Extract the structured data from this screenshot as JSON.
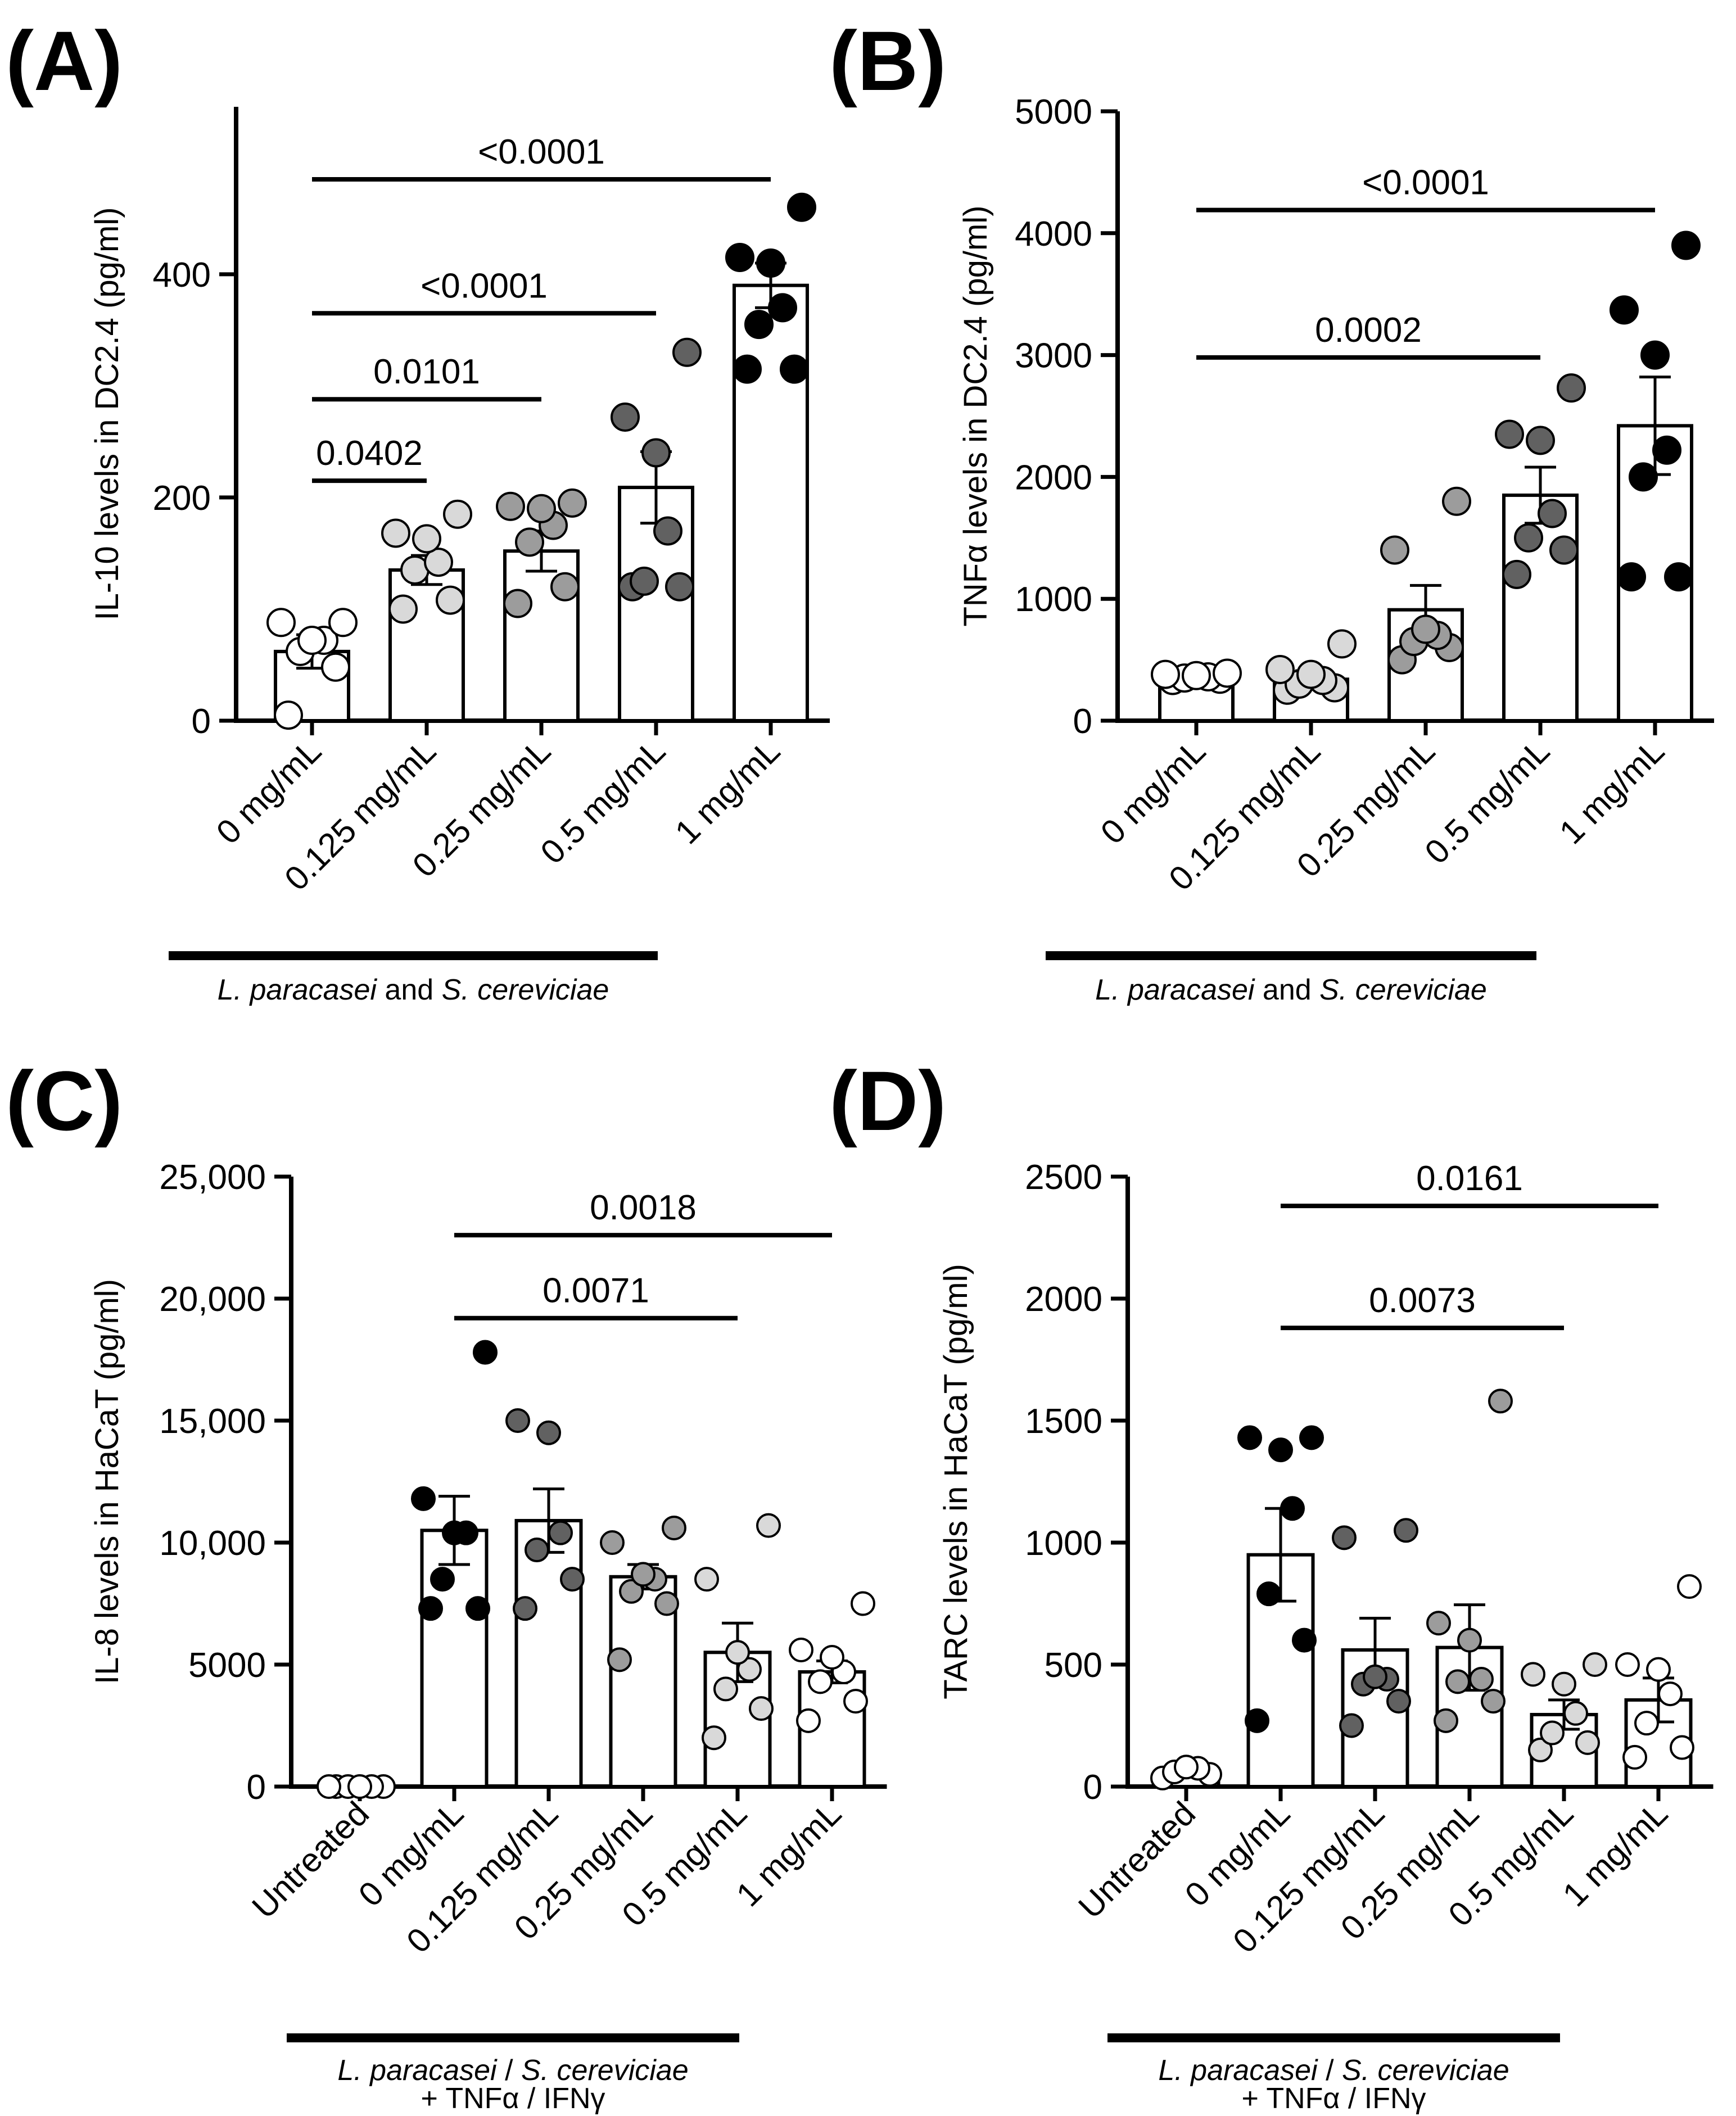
{
  "colors": {
    "white": "#ffffff",
    "light_gray": "#d9d9d9",
    "gray": "#9c9c9c",
    "dark_gray": "#616161",
    "black": "#000000"
  },
  "chart_data": [
    {
      "panel": "(A)",
      "type": "bar",
      "ylabel": "IL-10 levels in DC2.4 (pg/ml)",
      "categories": [
        "0 mg/mL",
        "0.125 mg/mL",
        "0.25 mg/mL",
        "0.5 mg/mL",
        "1 mg/mL"
      ],
      "ylim": [
        0,
        550
      ],
      "yticks": [
        0,
        200,
        400
      ],
      "ytick_labels": [
        "0",
        "200",
        "400"
      ],
      "means": [
        62,
        135,
        152,
        209,
        390
      ],
      "sem": [
        15,
        13,
        18,
        32,
        20
      ],
      "points": [
        [
          5,
          48,
          62,
          72,
          72,
          88,
          88
        ],
        [
          100,
          108,
          135,
          142,
          163,
          168,
          185
        ],
        [
          105,
          120,
          160,
          175,
          190,
          192,
          195
        ],
        [
          120,
          120,
          125,
          170,
          240,
          272,
          330
        ],
        [
          315,
          315,
          355,
          370,
          410,
          415,
          460
        ]
      ],
      "point_colors": [
        "white",
        "light_gray",
        "gray",
        "dark_gray",
        "black"
      ],
      "comparisons": [
        {
          "from": 0,
          "to": 1,
          "y": 215,
          "label": "0.0402"
        },
        {
          "from": 0,
          "to": 2,
          "y": 288,
          "label": "0.0101"
        },
        {
          "from": 0,
          "to": 3,
          "y": 365,
          "label": "<0.0001"
        },
        {
          "from": 0,
          "to": 4,
          "y": 485,
          "label": "<0.0001"
        }
      ],
      "group_bar_label_parts": [
        {
          "text": "L. paracasei",
          "italic": true
        },
        {
          "text": " and ",
          "italic": false
        },
        {
          "text": "S. cereviciae",
          "italic": true
        }
      ],
      "group_bar_line2": ""
    },
    {
      "panel": "(B)",
      "type": "bar",
      "ylabel": "TNFα levels in DC2.4 (pg/ml)",
      "categories": [
        "0 mg/mL",
        "0.125 mg/mL",
        "0.25 mg/mL",
        "0.5 mg/mL",
        "1 mg/mL"
      ],
      "ylim": [
        0,
        5000
      ],
      "yticks": [
        0,
        1000,
        2000,
        3000,
        4000,
        5000
      ],
      "ytick_labels": [
        "0",
        "1000",
        "2000",
        "3000",
        "4000",
        "5000"
      ],
      "means": [
        350,
        340,
        910,
        1850,
        2420
      ],
      "sem": [
        30,
        70,
        200,
        230,
        400
      ],
      "points": [
        [
          330,
          340,
          350,
          360,
          370,
          380,
          390
        ],
        [
          250,
          270,
          300,
          330,
          380,
          420,
          630
        ],
        [
          500,
          600,
          650,
          700,
          750,
          1400,
          1800
        ],
        [
          1200,
          1400,
          1500,
          1700,
          2300,
          2350,
          2730
        ],
        [
          1180,
          1180,
          2000,
          2220,
          3000,
          3370,
          3900
        ]
      ],
      "point_colors": [
        "white",
        "light_gray",
        "gray",
        "dark_gray",
        "black"
      ],
      "comparisons": [
        {
          "from": 0,
          "to": 3,
          "y": 2980,
          "label": "0.0002"
        },
        {
          "from": 0,
          "to": 4,
          "y": 4190,
          "label": "<0.0001"
        }
      ],
      "group_bar_label_parts": [
        {
          "text": "L. paracasei",
          "italic": true
        },
        {
          "text": " and ",
          "italic": false
        },
        {
          "text": "S. cereviciae",
          "italic": true
        }
      ],
      "group_bar_line2": ""
    },
    {
      "panel": "(C)",
      "type": "bar",
      "ylabel": "IL-8 levels in HaCaT (pg/ml)",
      "categories": [
        "Untreated",
        "0 mg/mL",
        "0.125 mg/mL",
        "0.25 mg/mL",
        "0.5 mg/mL",
        "1 mg/mL"
      ],
      "ylim": [
        0,
        25000
      ],
      "yticks": [
        0,
        5000,
        10000,
        15000,
        20000,
        25000
      ],
      "ytick_labels": [
        "0",
        "5000",
        "10,000",
        "15,000",
        "20,000",
        "25,000"
      ],
      "means": [
        0,
        10500,
        10900,
        8600,
        5500,
        4700
      ],
      "sem": [
        0,
        1400,
        1300,
        500,
        1200,
        450
      ],
      "points": [
        [
          0,
          0,
          0,
          0,
          0,
          0
        ],
        [
          7300,
          7300,
          8500,
          10400,
          10400,
          11800,
          17800
        ],
        [
          7300,
          8500,
          9700,
          10400,
          14500,
          15000
        ],
        [
          5200,
          7500,
          8000,
          8500,
          8700,
          10000,
          10600
        ],
        [
          2000,
          3200,
          4000,
          4800,
          5500,
          8500,
          10700
        ],
        [
          2700,
          3500,
          4300,
          4700,
          5300,
          5600,
          7500
        ]
      ],
      "point_colors": [
        "white",
        "black",
        "dark_gray",
        "gray",
        "light_gray",
        "white"
      ],
      "comparisons": [
        {
          "from": 1,
          "to": 4,
          "y": 19200,
          "label": "0.0071"
        },
        {
          "from": 1,
          "to": 5,
          "y": 22600,
          "label": "0.0018"
        }
      ],
      "group_bar_label_parts": [
        {
          "text": "L. paracasei",
          "italic": true
        },
        {
          "text": " / ",
          "italic": false
        },
        {
          "text": "S. cereviciae",
          "italic": true
        }
      ],
      "group_bar_line2": "+ TNFα / IFNγ"
    },
    {
      "panel": "(D)",
      "type": "bar",
      "ylabel": "TARC levels in HaCaT (pg/ml)",
      "categories": [
        "Untreated",
        "0 mg/mL",
        "0.125 mg/mL",
        "0.25 mg/mL",
        "0.5 mg/mL",
        "1 mg/mL"
      ],
      "ylim": [
        0,
        2500
      ],
      "yticks": [
        0,
        500,
        1000,
        1500,
        2000,
        2500
      ],
      "ytick_labels": [
        "0",
        "500",
        "1000",
        "1500",
        "2000",
        "2500"
      ],
      "means": [
        55,
        950,
        560,
        570,
        295,
        355
      ],
      "sem": [
        10,
        190,
        130,
        175,
        60,
        90
      ],
      "points": [
        [
          35,
          50,
          60,
          75,
          80
        ],
        [
          270,
          600,
          790,
          1140,
          1380,
          1430,
          1430
        ],
        [
          250,
          350,
          420,
          440,
          450,
          1020,
          1050
        ],
        [
          270,
          350,
          430,
          440,
          600,
          670,
          1580
        ],
        [
          150,
          180,
          220,
          300,
          420,
          460,
          500
        ],
        [
          120,
          160,
          260,
          380,
          480,
          500,
          820
        ]
      ],
      "point_colors": [
        "white",
        "black",
        "dark_gray",
        "gray",
        "light_gray",
        "white"
      ],
      "comparisons": [
        {
          "from": 1,
          "to": 4,
          "y": 1880,
          "label": "0.0073"
        },
        {
          "from": 1,
          "to": 5,
          "y": 2380,
          "label": "0.0161"
        }
      ],
      "group_bar_label_parts": [
        {
          "text": "L. paracasei",
          "italic": true
        },
        {
          "text": " / ",
          "italic": false
        },
        {
          "text": "S. cereviciae",
          "italic": true
        }
      ],
      "group_bar_line2": "+ TNFα / IFNγ"
    }
  ]
}
